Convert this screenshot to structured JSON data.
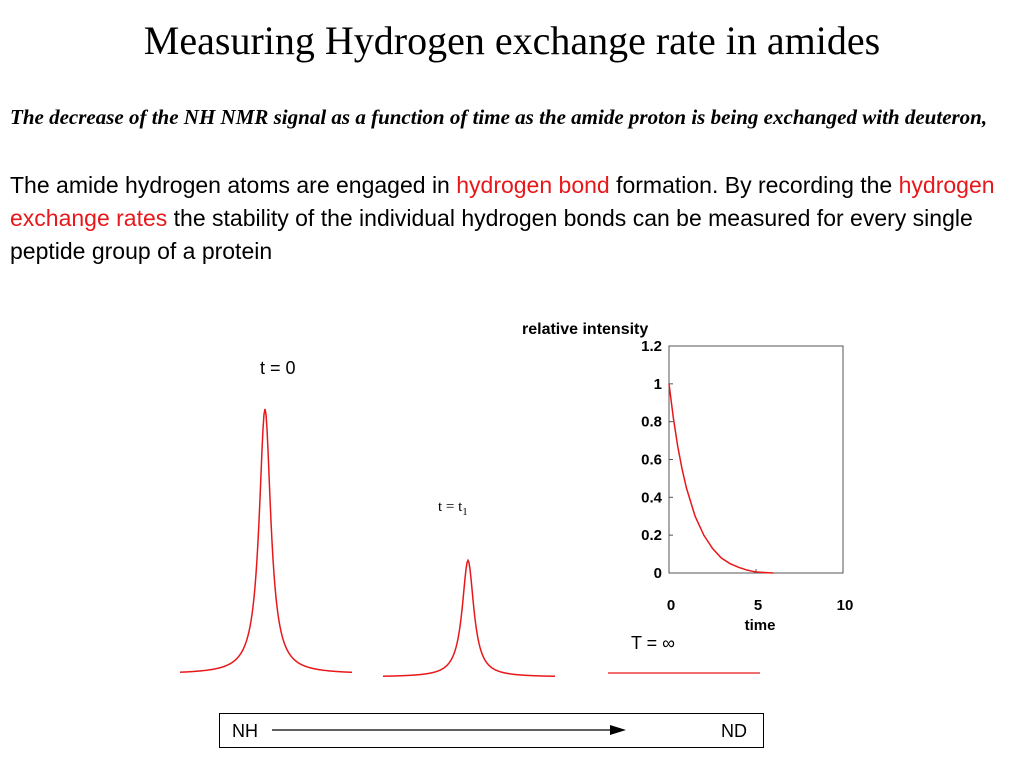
{
  "title": "Measuring Hydrogen exchange rate in amides",
  "subtitle": "The decrease of the NH NMR signal as a function of time as the amide proton is being exchanged with deuteron,",
  "body": {
    "part1": "The amide hydrogen atoms are engaged in ",
    "highlight1": "hydrogen bond",
    "part2": " formation. By recording the ",
    "highlight2": "hydrogen exchange rates",
    "part3": " the stability of the individual hydrogen bonds can be measured for every single peptide group of a protein"
  },
  "colors": {
    "accent": "#e8171a",
    "text": "#000000",
    "background": "#ffffff"
  },
  "spectra": {
    "t0_label": "t = 0",
    "t1_label_base": "t = t",
    "t1_label_sub": "1",
    "tinf_label": "T = ∞",
    "t0_relative_height": 1.0,
    "t1_relative_height": 0.44,
    "tinf_relative_height": 0.0
  },
  "chart_data": {
    "type": "line",
    "title": "relative intensity",
    "xlabel": "time",
    "ylabel": "",
    "xlim": [
      0,
      10
    ],
    "ylim": [
      0,
      1.2
    ],
    "x_ticks": [
      "0",
      "5",
      "10"
    ],
    "y_ticks": [
      "1.2",
      "1",
      "0.8",
      "0.6",
      "0.4",
      "0.2",
      "0"
    ],
    "series": [
      {
        "color": "#e8171a",
        "x": [
          0,
          0.25,
          0.5,
          0.75,
          1,
          1.5,
          2,
          2.5,
          3,
          3.5,
          4,
          4.5,
          5,
          6
        ],
        "y": [
          1.0,
          0.82,
          0.67,
          0.55,
          0.45,
          0.3,
          0.2,
          0.13,
          0.08,
          0.05,
          0.03,
          0.015,
          0.005,
          0.0
        ]
      }
    ]
  },
  "exchange_bar": {
    "left_label": "NH",
    "right_label": "ND"
  }
}
